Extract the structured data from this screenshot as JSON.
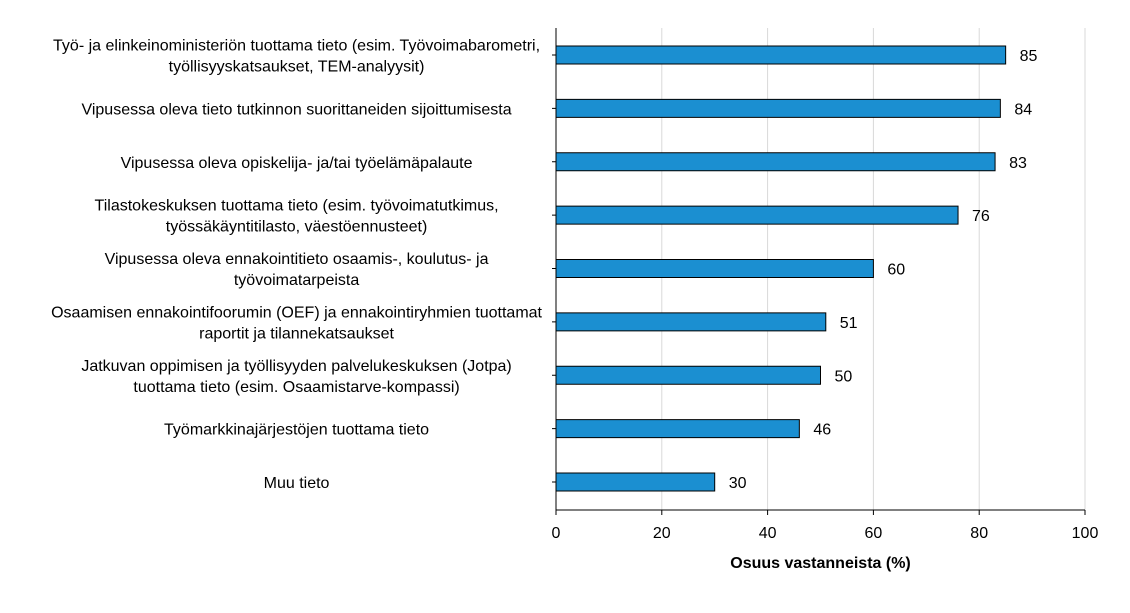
{
  "chart_data": {
    "type": "bar",
    "orientation": "horizontal",
    "title": "",
    "xlabel": "Osuus vastanneista (%)",
    "ylabel": "",
    "xlim": [
      0,
      100
    ],
    "xticks": [
      0,
      20,
      40,
      60,
      80,
      100
    ],
    "grid": "vertical",
    "legend": "none",
    "colors": {
      "bar_fill": "#1b8fd1",
      "bar_stroke": "#000000",
      "grid": "#d9d9d9",
      "axis": "#000000"
    },
    "categories": [
      [
        "Työ- ja elinkeinoministeriön tuottama tieto (esim. Työvoimabarometri,",
        "työllisyyskatsaukset, TEM-analyysit)"
      ],
      [
        "Vipusessa oleva tieto tutkinnon suorittaneiden sijoittumisesta"
      ],
      [
        "Vipusessa oleva opiskelija- ja/tai työelämäpalaute"
      ],
      [
        "Tilastokeskuksen tuottama tieto (esim. työvoimatutkimus,",
        "työssäkäyntitilasto, väestöennusteet)"
      ],
      [
        "Vipusessa oleva ennakointitieto osaamis-, koulutus- ja",
        "työvoimatarpeista"
      ],
      [
        "Osaamisen ennakointifoorumin (OEF) ja ennakointiryhmien tuottamat",
        "raportit ja tilannekatsaukset"
      ],
      [
        "Jatkuvan oppimisen ja työllisyyden palvelukeskuksen (Jotpa)",
        "tuottama tieto (esim. Osaamistarve-kompassi)"
      ],
      [
        "Työmarkkinajärjestöjen tuottama tieto"
      ],
      [
        "Muu tieto"
      ]
    ],
    "values": [
      85,
      84,
      83,
      76,
      60,
      51,
      50,
      46,
      30
    ]
  }
}
